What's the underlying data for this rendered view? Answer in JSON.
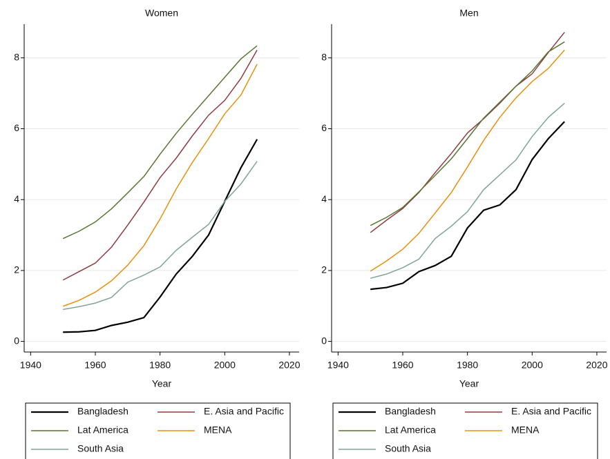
{
  "chart_data": [
    {
      "type": "line",
      "title": "Women",
      "x_label": "Year",
      "x": [
        1950,
        1955,
        1960,
        1965,
        1970,
        1975,
        1980,
        1985,
        1990,
        1995,
        2000,
        2005,
        2010
      ],
      "xlim": [
        1938,
        2023
      ],
      "xticks": [
        1940,
        1960,
        1980,
        2000,
        2020
      ],
      "ylim": [
        -0.3,
        8.95
      ],
      "yticks": [
        0,
        2,
        4,
        6,
        8
      ],
      "grid": true,
      "series": [
        {
          "name": "Bangladesh",
          "color": "#000000",
          "values": [
            0.26,
            0.27,
            0.31,
            0.45,
            0.54,
            0.67,
            1.25,
            1.9,
            2.4,
            3.0,
            3.95,
            4.9,
            5.7
          ]
        },
        {
          "name": "E. Asia and Pacific",
          "color": "#903a40",
          "values": [
            1.73,
            1.97,
            2.21,
            2.66,
            3.28,
            3.93,
            4.62,
            5.17,
            5.8,
            6.38,
            6.8,
            7.42,
            8.22
          ]
        },
        {
          "name": "Lat America",
          "color": "#55772f",
          "values": [
            2.9,
            3.11,
            3.37,
            3.74,
            4.19,
            4.65,
            5.28,
            5.87,
            6.41,
            6.93,
            7.45,
            7.97,
            8.34
          ]
        },
        {
          "name": "MENA",
          "color": "#e8900c",
          "values": [
            0.99,
            1.16,
            1.39,
            1.71,
            2.15,
            2.7,
            3.45,
            4.3,
            5.05,
            5.72,
            6.42,
            6.95,
            7.82
          ]
        },
        {
          "name": "South Asia",
          "color": "#7fa39c",
          "values": [
            0.9,
            0.98,
            1.08,
            1.24,
            1.67,
            1.87,
            2.1,
            2.57,
            2.94,
            3.3,
            3.95,
            4.44,
            5.08
          ]
        }
      ]
    },
    {
      "type": "line",
      "title": "Men",
      "x_label": "Year",
      "x": [
        1950,
        1955,
        1960,
        1965,
        1970,
        1975,
        1980,
        1985,
        1990,
        1995,
        2000,
        2005,
        2010
      ],
      "xlim": [
        1938,
        2023
      ],
      "xticks": [
        1940,
        1960,
        1980,
        2000,
        2020
      ],
      "ylim": [
        -0.3,
        8.95
      ],
      "yticks": [
        0,
        2,
        4,
        6,
        8
      ],
      "grid": true,
      "series": [
        {
          "name": "Bangladesh",
          "color": "#000000",
          "values": [
            1.47,
            1.52,
            1.64,
            1.97,
            2.14,
            2.4,
            3.2,
            3.7,
            3.85,
            4.28,
            5.13,
            5.72,
            6.2
          ]
        },
        {
          "name": "E. Asia and Pacific",
          "color": "#903a40",
          "values": [
            3.07,
            3.42,
            3.75,
            4.2,
            4.76,
            5.3,
            5.88,
            6.28,
            6.72,
            7.2,
            7.55,
            8.15,
            8.72
          ]
        },
        {
          "name": "Lat America",
          "color": "#55772f",
          "values": [
            3.27,
            3.5,
            3.78,
            4.22,
            4.68,
            5.15,
            5.72,
            6.3,
            6.75,
            7.2,
            7.63,
            8.17,
            8.45
          ]
        },
        {
          "name": "MENA",
          "color": "#e8900c",
          "values": [
            1.98,
            2.27,
            2.6,
            3.05,
            3.62,
            4.2,
            4.92,
            5.67,
            6.32,
            6.87,
            7.33,
            7.7,
            8.22
          ]
        },
        {
          "name": "South Asia",
          "color": "#7fa39c",
          "values": [
            1.78,
            1.9,
            2.08,
            2.32,
            2.9,
            3.25,
            3.66,
            4.28,
            4.7,
            5.12,
            5.78,
            6.32,
            6.72
          ]
        }
      ]
    }
  ]
}
